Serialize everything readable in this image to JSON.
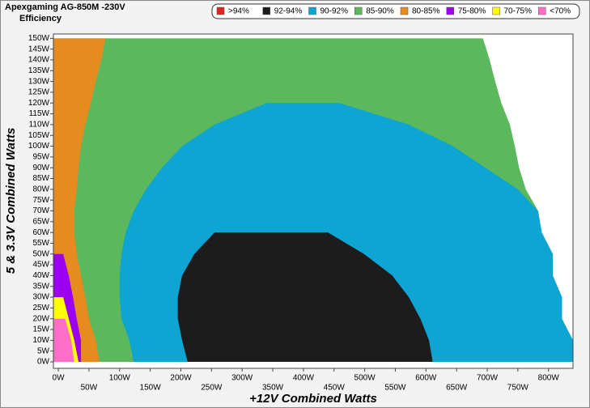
{
  "chart_data": {
    "type": "region_map",
    "title": "Apexgaming AG-850M -230V",
    "subtitle": "Efficiency",
    "x_label": "+12V Combined Watts",
    "y_label": "5 & 3.3V Combined Watts",
    "legend": [
      {
        "name": ">94%",
        "color": "#e02424"
      },
      {
        "name": "92-94%",
        "color": "#1c1c1c"
      },
      {
        "name": "90-92%",
        "color": "#0ea5d2"
      },
      {
        "name": "85-90%",
        "color": "#5cb85c"
      },
      {
        "name": "80-85%",
        "color": "#e88b1f"
      },
      {
        "name": "75-80%",
        "color": "#9b00f0"
      },
      {
        "name": "70-75%",
        "color": "#ffff00"
      },
      {
        "name": "<70%",
        "color": "#ff6ec7"
      }
    ],
    "legend_position": "top right",
    "y": [
      0,
      10,
      20,
      30,
      40,
      50,
      60,
      70,
      80,
      90,
      100,
      110,
      120,
      130,
      140,
      150
    ],
    "series": [
      {
        "name": "85-90%",
        "color": "#5cb85c",
        "to": [
          840,
          840,
          822,
          822,
          807,
          807,
          789,
          783,
          763,
          752,
          745,
          737,
          723,
          713,
          704,
          693
        ]
      },
      {
        "name": "90-92%",
        "color": "#0ea5d2",
        "from": [
          123,
          116,
          103,
          100,
          100,
          103,
          110,
          123,
          143,
          169,
          202,
          255,
          340,
          null,
          null,
          null
        ],
        "to": [
          840,
          840,
          822,
          822,
          807,
          807,
          789,
          783,
          750,
          697,
          644,
          572,
          459,
          null,
          null,
          null
        ]
      },
      {
        "name": "92-94%",
        "color": "#1c1c1c",
        "from": [
          211,
          202,
          195,
          195,
          202,
          222,
          255,
          null,
          null,
          null,
          null,
          null,
          null,
          null,
          null,
          null
        ],
        "to": [
          611,
          605,
          591,
          572,
          545,
          499,
          440,
          null,
          null,
          null,
          null,
          null,
          null,
          null,
          null,
          null
        ]
      },
      {
        "name": "80-85%",
        "color": "#e88b1f",
        "to": [
          67,
          61,
          50,
          44,
          37,
          30,
          26,
          26,
          30,
          33,
          37,
          44,
          53,
          61,
          70,
          77
        ]
      },
      {
        "name": "75-80%",
        "color": "#9b00f0",
        "to": [
          37,
          37,
          30,
          24,
          17,
          8,
          null,
          null,
          null,
          null,
          null,
          null,
          null,
          null,
          null,
          null
        ]
      },
      {
        "name": "70-75%",
        "color": "#ffff00",
        "to": [
          33,
          26,
          17,
          8,
          null,
          null,
          null,
          null,
          null,
          null,
          null,
          null,
          null,
          null,
          null,
          null
        ]
      },
      {
        "name": "<70%",
        "color": "#ff6ec7",
        "to": [
          26,
          21,
          11,
          null,
          null,
          null,
          null,
          null,
          null,
          null,
          null,
          null,
          null,
          null,
          null,
          null
        ]
      }
    ],
    "xlim": [
      -8,
      840
    ],
    "ylim": [
      -3,
      152
    ],
    "xticks": [
      {
        "value": 0,
        "label": "0W"
      },
      {
        "value": 50,
        "label": "50W"
      },
      {
        "value": 100,
        "label": "100W"
      },
      {
        "value": 150,
        "label": "150W"
      },
      {
        "value": 200,
        "label": "200W"
      },
      {
        "value": 250,
        "label": "250W"
      },
      {
        "value": 300,
        "label": "300W"
      },
      {
        "value": 350,
        "label": "350W"
      },
      {
        "value": 400,
        "label": "400W"
      },
      {
        "value": 450,
        "label": "450W"
      },
      {
        "value": 500,
        "label": "500W"
      },
      {
        "value": 550,
        "label": "550W"
      },
      {
        "value": 600,
        "label": "600W"
      },
      {
        "value": 650,
        "label": "650W"
      },
      {
        "value": 700,
        "label": "700W"
      },
      {
        "value": 750,
        "label": "750W"
      },
      {
        "value": 800,
        "label": "800W"
      }
    ],
    "yticks": [
      {
        "value": 0,
        "label": "0W"
      },
      {
        "value": 5,
        "label": "5W"
      },
      {
        "value": 10,
        "label": "10W"
      },
      {
        "value": 15,
        "label": "15W"
      },
      {
        "value": 20,
        "label": "20W"
      },
      {
        "value": 25,
        "label": "25W"
      },
      {
        "value": 30,
        "label": "30W"
      },
      {
        "value": 35,
        "label": "35W"
      },
      {
        "value": 40,
        "label": "40W"
      },
      {
        "value": 45,
        "label": "45W"
      },
      {
        "value": 50,
        "label": "50W"
      },
      {
        "value": 55,
        "label": "55W"
      },
      {
        "value": 60,
        "label": "60W"
      },
      {
        "value": 65,
        "label": "65W"
      },
      {
        "value": 70,
        "label": "70W"
      },
      {
        "value": 75,
        "label": "75W"
      },
      {
        "value": 80,
        "label": "80W"
      },
      {
        "value": 85,
        "label": "85W"
      },
      {
        "value": 90,
        "label": "90W"
      },
      {
        "value": 95,
        "label": "95W"
      },
      {
        "value": 100,
        "label": "100W"
      },
      {
        "value": 105,
        "label": "105W"
      },
      {
        "value": 110,
        "label": "110W"
      },
      {
        "value": 115,
        "label": "115W"
      },
      {
        "value": 120,
        "label": "120W"
      },
      {
        "value": 125,
        "label": "125W"
      },
      {
        "value": 130,
        "label": "130W"
      },
      {
        "value": 135,
        "label": "135W"
      },
      {
        "value": 140,
        "label": "140W"
      },
      {
        "value": 145,
        "label": "145W"
      },
      {
        "value": 150,
        "label": "150W"
      }
    ]
  }
}
